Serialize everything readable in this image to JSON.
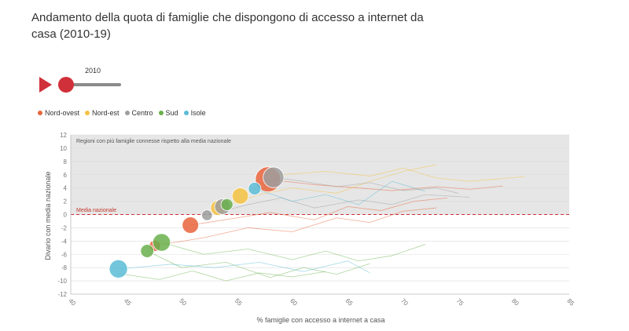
{
  "title": "Andamento della quota di famiglie che dispongono di accesso a internet da casa (2010-19)",
  "slider": {
    "year": "2010"
  },
  "legend": [
    {
      "name": "Nord-ovest",
      "color": "#e8643c"
    },
    {
      "name": "Nord-est",
      "color": "#f5c242"
    },
    {
      "name": "Centro",
      "color": "#9e9e9e"
    },
    {
      "name": "Sud",
      "color": "#6ab04c"
    },
    {
      "name": "Isole",
      "color": "#5bbcd6"
    }
  ],
  "chart_data": {
    "type": "scatter",
    "xlabel": "% famiglie con accesso a internet a casa",
    "ylabel": "Divario con media nazionale",
    "xlim": [
      40,
      85
    ],
    "ylim": [
      -12,
      12
    ],
    "xticks": [
      40,
      45,
      50,
      55,
      60,
      65,
      70,
      75,
      80,
      85
    ],
    "yticks": [
      -12,
      -10,
      -8,
      -6,
      -4,
      -2,
      0,
      2,
      4,
      6,
      8,
      10,
      12
    ],
    "band_label": "Regioni con più famiglie connesse rispetto alla media nazionale",
    "reference_line": {
      "y": 0,
      "label": "Media nazionale"
    },
    "points": [
      {
        "group": "Nord-ovest",
        "x": 57.8,
        "y": 5.3,
        "size": 3.0
      },
      {
        "group": "Centro",
        "x": 58.3,
        "y": 5.6,
        "size": 2.3
      },
      {
        "group": "Nord-ovest",
        "x": 50.8,
        "y": -1.6,
        "size": 1.6
      },
      {
        "group": "Nord-ovest",
        "x": 47.6,
        "y": -4.7,
        "size": 0.8
      },
      {
        "group": "Nord-est",
        "x": 55.3,
        "y": 2.8,
        "size": 1.6
      },
      {
        "group": "Nord-est",
        "x": 53.3,
        "y": 1.0,
        "size": 1.4
      },
      {
        "group": "Centro",
        "x": 53.7,
        "y": 1.2,
        "size": 1.5
      },
      {
        "group": "Centro",
        "x": 52.3,
        "y": -0.1,
        "size": 0.7
      },
      {
        "group": "Sud",
        "x": 54.1,
        "y": 1.5,
        "size": 0.9
      },
      {
        "group": "Sud",
        "x": 48.2,
        "y": -4.2,
        "size": 1.8
      },
      {
        "group": "Sud",
        "x": 46.9,
        "y": -5.5,
        "size": 1.1
      },
      {
        "group": "Isole",
        "x": 56.6,
        "y": 3.9,
        "size": 1.0
      },
      {
        "group": "Isole",
        "x": 44.3,
        "y": -8.2,
        "size": 1.9
      }
    ],
    "trails": [
      {
        "group": "Nord-ovest",
        "x": [
          57.8,
          62,
          66,
          69,
          73,
          76,
          79
        ],
        "y": [
          5.3,
          4.5,
          4.0,
          3.6,
          4.2,
          3.8,
          4.3
        ]
      },
      {
        "group": "Nord-ovest",
        "x": [
          50.8,
          55,
          58,
          62,
          65,
          68,
          71,
          74
        ],
        "y": [
          -1.6,
          -0.5,
          0.3,
          -0.8,
          1.2,
          0.6,
          2.0,
          2.5
        ]
      },
      {
        "group": "Nord-ovest",
        "x": [
          47.6,
          52,
          56,
          60,
          64,
          67,
          70,
          73
        ],
        "y": [
          -4.7,
          -3.5,
          -2.0,
          -2.6,
          -0.5,
          -1.2,
          0.5,
          1.0
        ]
      },
      {
        "group": "Nord-est",
        "x": [
          55.3,
          59,
          63,
          67,
          70,
          73,
          76,
          81
        ],
        "y": [
          2.8,
          6.0,
          6.5,
          5.8,
          7.0,
          5.5,
          5.0,
          5.7
        ]
      },
      {
        "group": "Nord-est",
        "x": [
          53.3,
          57,
          60,
          64,
          67,
          70,
          73
        ],
        "y": [
          1.0,
          3.0,
          4.0,
          3.2,
          5.0,
          6.5,
          7.5
        ]
      },
      {
        "group": "Centro",
        "x": [
          58.3,
          61,
          64,
          67,
          70,
          73,
          75
        ],
        "y": [
          5.6,
          5.0,
          4.2,
          4.8,
          3.6,
          4.0,
          3.2
        ]
      },
      {
        "group": "Centro",
        "x": [
          52.3,
          56,
          59,
          62,
          66,
          69,
          72,
          76
        ],
        "y": [
          -0.1,
          1.5,
          2.5,
          1.0,
          2.2,
          1.5,
          3.0,
          2.6
        ]
      },
      {
        "group": "Sud",
        "x": [
          48.2,
          52,
          56,
          60,
          63,
          66,
          69,
          72
        ],
        "y": [
          -4.2,
          -6.0,
          -5.2,
          -6.8,
          -5.5,
          -7.0,
          -6.2,
          -4.5
        ]
      },
      {
        "group": "Sud",
        "x": [
          46.9,
          50,
          54,
          58,
          61,
          64,
          67
        ],
        "y": [
          -5.5,
          -8.0,
          -7.2,
          -9.5,
          -8.0,
          -9.0,
          -7.4
        ]
      },
      {
        "group": "Sud",
        "x": [
          44.3,
          48,
          51,
          54,
          57,
          60,
          63
        ],
        "y": [
          -8.9,
          -9.8,
          -8.5,
          -10.0,
          -8.8,
          -9.4,
          -8.6
        ]
      },
      {
        "group": "Isole",
        "x": [
          44.3,
          49,
          53,
          57,
          61,
          65,
          67
        ],
        "y": [
          -8.2,
          -7.5,
          -8.0,
          -7.2,
          -8.6,
          -7.0,
          -8.8
        ]
      },
      {
        "group": "Isole",
        "x": [
          56.6,
          60,
          63,
          66,
          69,
          72
        ],
        "y": [
          3.9,
          2.0,
          3.0,
          1.5,
          5.0,
          3.5
        ]
      }
    ]
  }
}
